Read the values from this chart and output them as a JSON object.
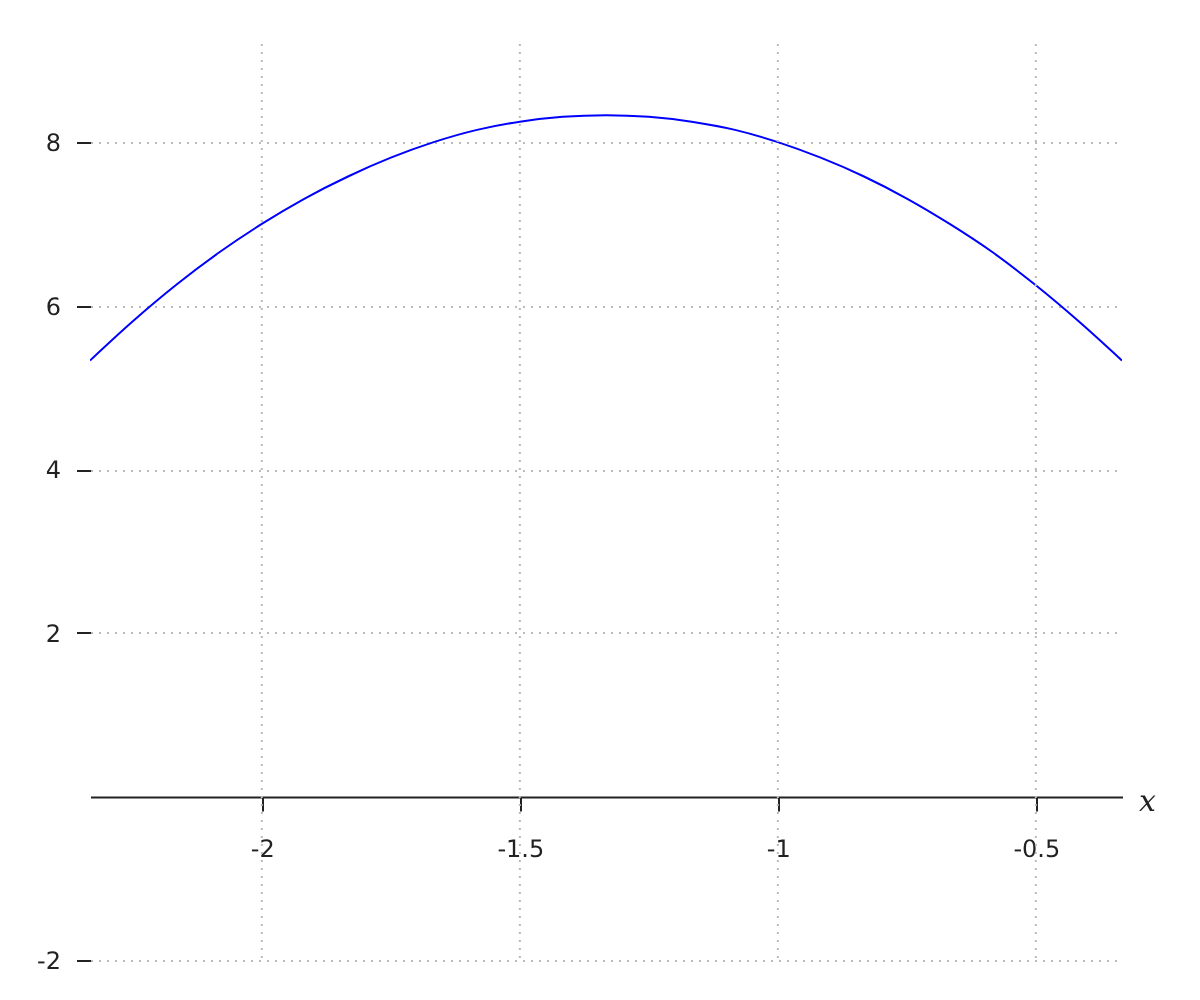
{
  "chart_data": {
    "type": "line",
    "xlabel": "x",
    "x": [
      -2.333,
      -2.25,
      -2.167,
      -2.083,
      -2,
      -1.917,
      -1.833,
      -1.75,
      -1.667,
      -1.583,
      -1.5,
      -1.417,
      -1.333,
      -1.25,
      -1.167,
      -1.083,
      -1,
      -0.917,
      -0.833,
      -0.75,
      -0.667,
      -0.583,
      -0.5,
      -0.417,
      -0.333
    ],
    "series": [
      {
        "color": "#0000ff",
        "values": [
          5.33,
          5.81,
          6.25,
          6.65,
          7.0,
          7.31,
          7.58,
          7.81,
          8.0,
          8.15,
          8.25,
          8.31,
          8.33,
          8.31,
          8.25,
          8.15,
          8.0,
          7.81,
          7.58,
          7.31,
          7.0,
          6.65,
          6.25,
          5.81,
          5.33
        ]
      }
    ],
    "xlim": [
      -2.333,
      -0.333
    ],
    "ylim": [
      -2,
      9.2
    ],
    "xticks": [
      -2,
      -1.5,
      -1,
      -0.5
    ],
    "yticks": [
      -2,
      2,
      4,
      6,
      8
    ],
    "grid": true,
    "marker": "none",
    "line_style": "solid"
  }
}
